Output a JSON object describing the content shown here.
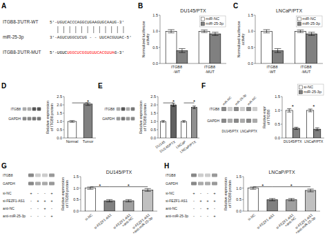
{
  "chart_data": [
    {
      "type": "text",
      "panel": "A",
      "lines": [
        {
          "label": "ITGB8-3'UTR-WT",
          "parts": [
            {
              "text": "5'-UGUCACCCAGGCUGAAGUGCAAUG-3'"
            }
          ]
        },
        {
          "label": "miR-25-3p",
          "parts": [
            {
              "text": "3'-AGUCUGGCUCUG - - UUCACGUUAC-5'"
            }
          ]
        },
        {
          "label": "ITGB8-3'UTR-MUT",
          "parts": [
            {
              "text": "5'-UGUC",
              "color": "black"
            },
            {
              "text": "UGGCUCGGUGUUCACGUUA",
              "color": "red"
            },
            {
              "text": "G-3'",
              "color": "black"
            }
          ]
        }
      ],
      "binding_lines": 12
    },
    {
      "type": "bar",
      "panel": "B",
      "title": "DU145/PTX",
      "categories": [
        "ITGB8\n-WT",
        "ITGB8\n-MUT"
      ],
      "series": [
        {
          "name": "miR-NC",
          "color": "white",
          "values": [
            1.0,
            1.0
          ],
          "errors": [
            0.05,
            0.04
          ]
        },
        {
          "name": "miR-25-3p",
          "color": "#808080",
          "values": [
            0.4,
            0.92
          ],
          "errors": [
            0.06,
            0.05
          ]
        }
      ],
      "ylabel": "Normalized luciferase\nactivity",
      "ylim": [
        0.0,
        1.5
      ],
      "yticks": [
        {
          "value": 0.0,
          "label": "0.0"
        },
        0.5,
        {
          "value": 1.0,
          "label": "1.0"
        },
        1.5
      ],
      "legend": "upper right"
    },
    {
      "type": "bar",
      "panel": "C",
      "title": "LNCaP/PTX",
      "categories": [
        "ITGB8\n-WT",
        "ITGB8\n-MUT"
      ],
      "series": [
        {
          "name": "miR-NC",
          "color": "white",
          "values": [
            1.0,
            1.0
          ],
          "errors": [
            0.05,
            0.04
          ]
        },
        {
          "name": "miR-25-3p",
          "color": "#808080",
          "values": [
            0.4,
            0.92
          ],
          "errors": [
            0.06,
            0.05
          ]
        }
      ],
      "ylabel": "Normalized luciferase\nactivity",
      "ylim": [
        0.0,
        1.5
      ],
      "yticks": [
        {
          "value": 0.0,
          "label": "0.0"
        },
        0.5,
        {
          "value": 1.0,
          "label": "1.0"
        },
        1.5
      ],
      "legend": "upper right"
    },
    {
      "type": "blot",
      "panel": "D",
      "series": [
        {
          "name": "ITGB8",
          "colors": [
            "#AAAAAA",
            "#AAAAAA",
            "#555555",
            "#555555"
          ]
        },
        {
          "name": "GAPDH",
          "colors": [
            "#888888",
            "#888888",
            "#777777",
            "#777777"
          ]
        }
      ]
    },
    {
      "type": "bar",
      "categories": [
        "Normal",
        "Tumor"
      ],
      "values": [
        1.0,
        2.05
      ],
      "errors": [
        0.05,
        0.08
      ],
      "colors": [
        "white",
        "#808080"
      ],
      "ylabel": "Relative expression\nof ITGB8 protein",
      "ylim": [
        0.0,
        2.5
      ],
      "yticks": [
        {
          "value": 0.0,
          "label": "0.0"
        },
        0.5,
        {
          "value": 1.0,
          "label": "1.0"
        },
        1.5,
        {
          "value": 2.0,
          "label": "2.0"
        },
        2.5
      ],
      "annotations": [
        {
          "text": "*",
          "y": 2.18,
          "line_y": 2.12,
          "between": [
            "Normal",
            "Tumor"
          ],
          "at": "Tumor"
        }
      ]
    },
    {
      "type": "blot",
      "panel": "E",
      "series": [
        {
          "name": "ITGB8",
          "colors": [
            "#AAAAAA",
            "#555555",
            "#AAAAAA",
            "#777777"
          ]
        },
        {
          "name": "GAPDH",
          "colors": [
            "#999999",
            "#777777",
            "#999999",
            "#888888"
          ]
        }
      ]
    },
    {
      "type": "bar",
      "categories": [
        "DU145",
        "DU145/PTX",
        "LNCaP",
        "LNCaP/PTX"
      ],
      "values": [
        1.0,
        2.0,
        1.0,
        1.85
      ],
      "errors": [
        0.05,
        0.1,
        0.05,
        0.08
      ],
      "colors": [
        "white",
        "#606060",
        "white",
        "#909090"
      ],
      "ylabel": "Relative expression\nof ITGB8 protein",
      "ylim": [
        0.0,
        2.5
      ],
      "yticks": [
        {
          "value": 0.0,
          "label": "0.0"
        },
        0.5,
        {
          "value": 1.0,
          "label": "1.0"
        },
        1.5,
        {
          "value": 2.0,
          "label": "2.0"
        },
        2.5
      ],
      "annotations": [
        {
          "text": "*",
          "y": 2.18,
          "line_y": 2.12,
          "between": [
            "DU145",
            "DU145/PTX"
          ],
          "at": "DU145/PTX"
        },
        {
          "text": "*",
          "y": 2.18,
          "line_y": 2.12,
          "between": [
            "LNCaP",
            "LNCaP/PTX"
          ],
          "at": "LNCaP/PTX"
        }
      ]
    },
    {
      "type": "blot",
      "panel": "F",
      "series": [
        {
          "name": "ITGB8",
          "colors": [
            "#888888",
            "#CCCCCC",
            "#888888",
            "#CCCCCC",
            "#888888",
            "#CCCCCC"
          ]
        },
        {
          "name": "GAPDH",
          "colors": [
            "#888888",
            "#AAAAAA",
            "#888888",
            "#AAAAAA",
            "#888888",
            "#AAAAAA"
          ]
        }
      ],
      "col_labels": [
        "miR-NC",
        "miR-25-3p",
        "miR-NC"
      ],
      "group_labels": [
        "DU145/PTX",
        "LNCaP/PTX"
      ]
    },
    {
      "type": "bar",
      "categories": [
        "DU145/PTX",
        "LNCaP/PTX"
      ],
      "series": [
        {
          "name": "si-NC",
          "color": "white",
          "values": [
            1.0,
            1.0
          ],
          "errors": [
            0.06,
            0.05
          ]
        },
        {
          "name": "miR-25-3p",
          "color": "#808080",
          "values": [
            0.35,
            0.32
          ],
          "errors": [
            0.04,
            0.05
          ]
        }
      ],
      "ylabel": "Relative expr\nof ITGB8",
      "ylim": [
        0.0,
        1.5
      ],
      "yticks": [
        {
          "value": 0.0,
          "label": "0.0"
        },
        0.5,
        {
          "value": 1.0,
          "label": "1.0"
        },
        1.5
      ],
      "legend": "upper right",
      "annotations": [
        {
          "text": "*",
          "y": 1.12,
          "at": "DU145/PTX"
        },
        {
          "text": "*",
          "y": 1.12,
          "at": "LNCaP/PTX"
        }
      ]
    },
    {
      "type": "blot",
      "panel": "G",
      "series": [
        {
          "name": "ITGB8",
          "colors": [
            "#888888",
            "#CCCCCC",
            "#CCCCCC",
            "#999999"
          ]
        },
        {
          "name": "GAPDH",
          "colors": [
            "#888888",
            "#AAAAAA",
            "#AAAAAA",
            "#999999"
          ]
        }
      ],
      "row_labels": [
        "si-NC",
        "si-FEZF1-AS1",
        "anti-NC",
        "anti-miR-25-3p"
      ],
      "plus_minus": [
        [
          "+",
          "-",
          "-",
          "+"
        ],
        [
          "-",
          "+",
          "+",
          "+"
        ],
        [
          "-",
          "-",
          "+",
          "-"
        ],
        [
          "-",
          "-",
          "-",
          "+"
        ]
      ]
    },
    {
      "type": "bar",
      "title": "DU145/PTX",
      "categories": [
        "si-NC",
        "si-FEZF1-AS1",
        "si-FEZF1-AS1\n+anti-NC",
        "si-FEZF1-AS1\n+anti-miR-25-3p"
      ],
      "values": [
        1.0,
        0.45,
        0.45,
        0.92
      ],
      "errors": [
        0.05,
        0.05,
        0.05,
        0.06
      ],
      "colors": [
        "white",
        "#808080",
        "#A0A0A0",
        "#C0C0C0"
      ],
      "ylabel": "Relative expression\nof ITGB8 protein",
      "ylim": [
        0.0,
        1.5
      ],
      "yticks": [
        {
          "value": 0.0,
          "label": "0.0"
        },
        0.5,
        {
          "value": 1.0,
          "label": "1.0"
        },
        1.5
      ],
      "annotations": [
        {
          "text": "*",
          "y": 1.09,
          "line_y": 1.06,
          "between": [
            "si-NC",
            "si-FEZF1-AS1"
          ]
        },
        {
          "text": "*",
          "y": 1.09,
          "line_y": 1.06,
          "between": [
            "si-FEZF1-AS1",
            "si-FEZF1-AS1\n+anti-miR-25-3p"
          ]
        }
      ]
    },
    {
      "type": "blot",
      "panel": "H",
      "series": [
        {
          "name": "ITGB8",
          "colors": [
            "#888888",
            "#CCCCCC",
            "#CCCCCC",
            "#999999"
          ]
        },
        {
          "name": "GAPDH",
          "colors": [
            "#888888",
            "#AAAAAA",
            "#AAAAAA",
            "#999999"
          ]
        }
      ],
      "row_labels": [
        "si-NC",
        "si-FEZF1-AS1",
        "anti-NC",
        "anti-miR-25-3p"
      ],
      "plus_minus": [
        [
          "+",
          "-",
          "-",
          "+"
        ],
        [
          "-",
          "+",
          "+",
          "+"
        ],
        [
          "-",
          "-",
          "+",
          "-"
        ],
        [
          "-",
          "-",
          "-",
          "+"
        ]
      ]
    },
    {
      "type": "bar",
      "title": "LNCaP/PTX",
      "categories": [
        "si-NC",
        "si-FEZF1-AS1",
        "si-FEZF1-AS1\n+anti-NC",
        "si-FEZF1-AS1\n+anti-miR-25-3p"
      ],
      "values": [
        1.0,
        0.5,
        0.5,
        0.9
      ],
      "errors": [
        0.05,
        0.05,
        0.05,
        0.06
      ],
      "colors": [
        "white",
        "#808080",
        "#A0A0A0",
        "#C0C0C0"
      ],
      "ylabel": "Relative expression\nof ITGB8 protein",
      "ylim": [
        0.0,
        1.5
      ],
      "yticks": [
        {
          "value": 0.0,
          "label": "0.0"
        },
        0.5,
        {
          "value": 1.0,
          "label": "1.0"
        },
        1.5
      ],
      "annotations": [
        {
          "text": "*",
          "y": 1.09,
          "line_y": 1.06,
          "between": [
            "si-NC",
            "si-FEZF1-AS1"
          ]
        },
        {
          "text": "*",
          "y": 1.09,
          "line_y": 1.06,
          "between": [
            "si-FEZF1-AS1",
            "si-FEZF1-AS1\n+anti-miR-25-3p"
          ]
        }
      ]
    }
  ]
}
